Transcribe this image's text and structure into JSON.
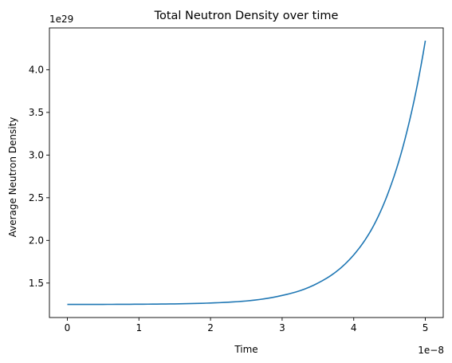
{
  "chart_data": {
    "type": "line",
    "title": "Total Neutron Density over time",
    "xlabel": "Time",
    "ylabel": "Average Neutron Density",
    "x_offset_label": "1e−8",
    "y_offset_label": "1e29",
    "x_scale": 1e-08,
    "y_scale": 1e+29,
    "xlim": [
      -2.5e-09,
      5.25e-08
    ],
    "ylim": [
      1.096e+29,
      4.49e+29
    ],
    "x_ticks": [
      0,
      1e-08,
      2e-08,
      3e-08,
      4e-08,
      5e-08
    ],
    "x_tick_labels": [
      "0",
      "1",
      "2",
      "3",
      "4",
      "5"
    ],
    "y_ticks": [
      1.5e+29,
      2e+29,
      2.5e+29,
      3e+29,
      3.5e+29,
      4e+29
    ],
    "y_tick_labels": [
      "1.5",
      "2.0",
      "2.5",
      "3.0",
      "3.5",
      "4.0"
    ],
    "grid": false,
    "legend": "none",
    "series": [
      {
        "color": "#1f77b4",
        "x": [
          0,
          5e-09,
          1e-08,
          1.5e-08,
          2e-08,
          2.5e-08,
          3e-08,
          3.25e-08,
          3.5e-08,
          3.75e-08,
          4e-08,
          4.25e-08,
          4.5e-08,
          4.75e-08,
          5e-08
        ],
        "y": [
          1.25e+29,
          1.25e+29,
          1.252e+29,
          1.256e+29,
          1.266e+29,
          1.29e+29,
          1.355e+29,
          1.41e+29,
          1.5e+29,
          1.63e+29,
          1.83e+29,
          2.13e+29,
          2.6e+29,
          3.3e+29,
          4.34e+29
        ]
      }
    ]
  }
}
